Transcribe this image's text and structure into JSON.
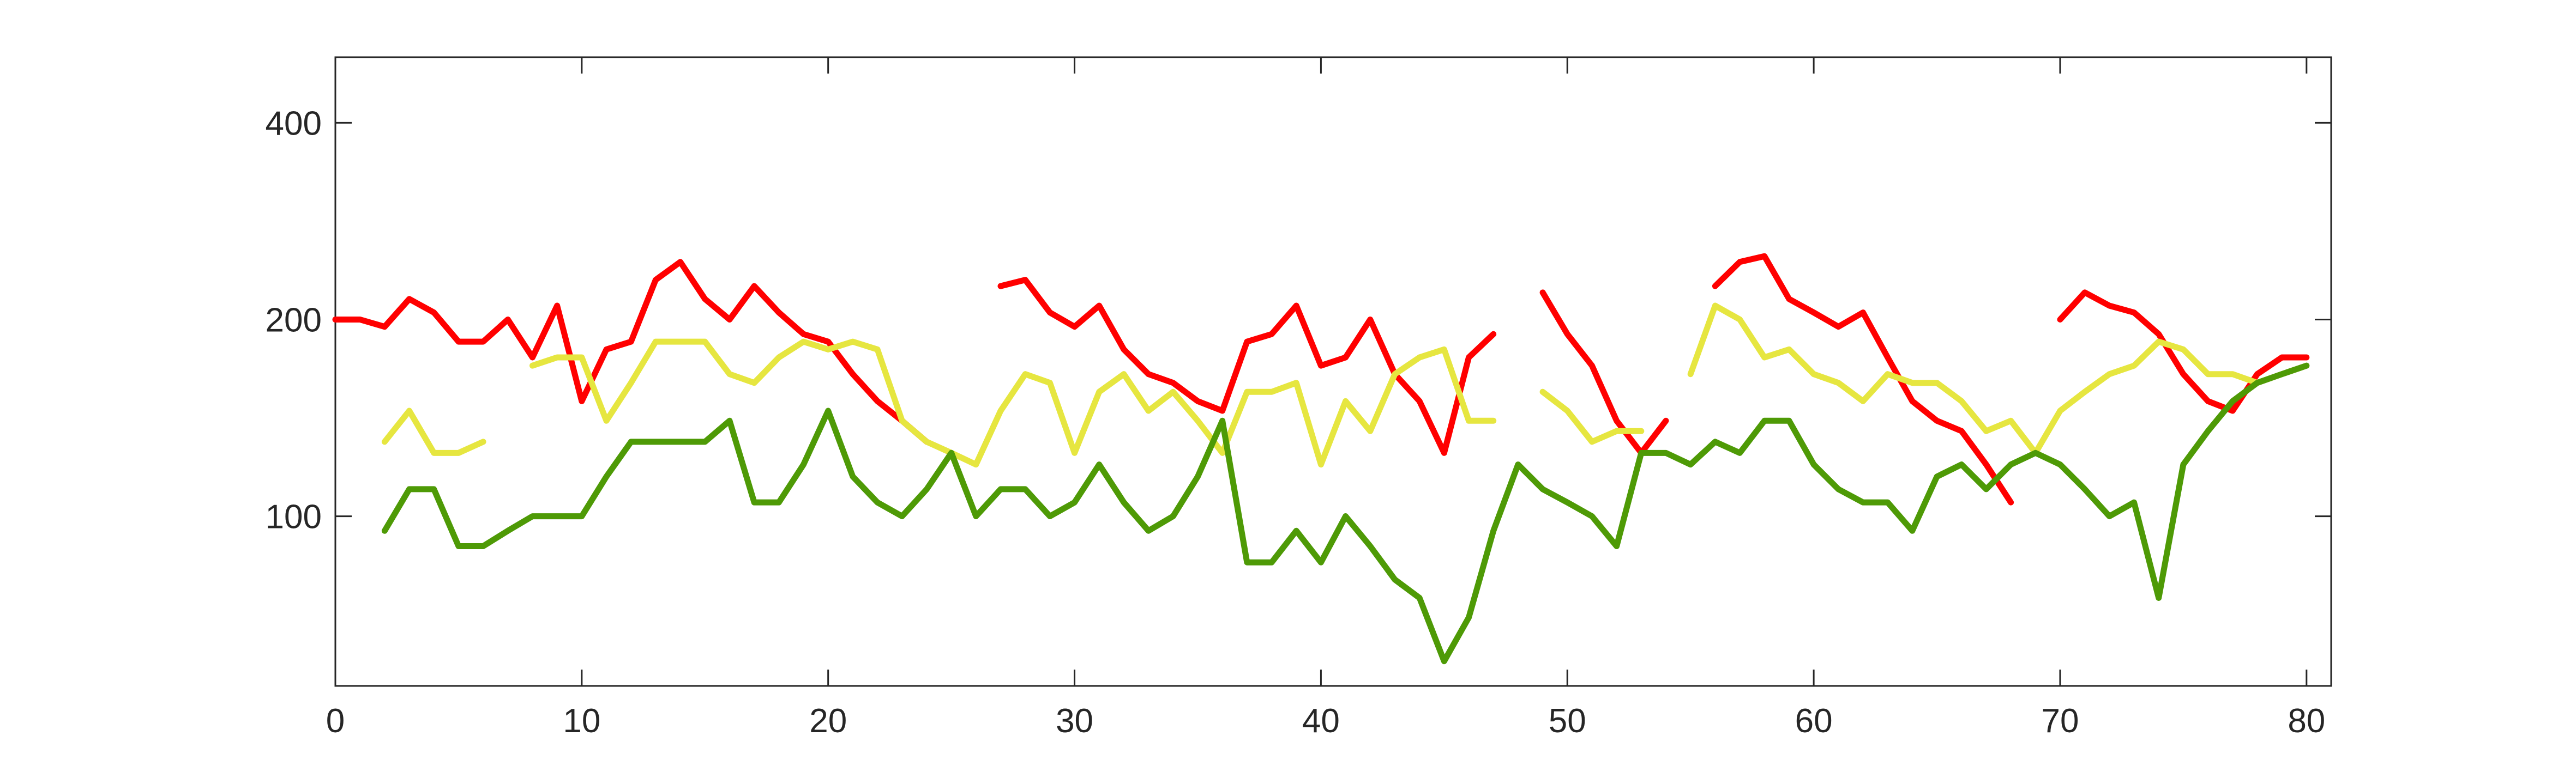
{
  "chart_data": {
    "type": "line",
    "yscale": "log",
    "x": [
      0,
      1,
      2,
      3,
      4,
      5,
      6,
      7,
      8,
      9,
      10,
      11,
      12,
      13,
      14,
      15,
      16,
      17,
      18,
      19,
      20,
      21,
      22,
      23,
      24,
      25,
      26,
      27,
      28,
      29,
      30,
      31,
      32,
      33,
      34,
      35,
      36,
      37,
      38,
      39,
      40,
      41,
      42,
      43,
      44,
      45,
      46,
      47,
      48,
      49,
      50,
      51,
      52,
      53,
      54,
      55,
      56,
      57,
      58,
      59,
      60,
      61,
      62,
      63,
      64,
      65,
      66,
      67,
      68,
      69,
      70,
      71,
      72,
      73,
      74,
      75,
      76,
      77,
      78,
      79,
      80
    ],
    "series": [
      {
        "color": "#ff0000",
        "values": [
          200,
          200,
          195,
          215,
          205,
          185,
          185,
          200,
          175,
          210,
          150,
          180,
          185,
          230,
          245,
          215,
          200,
          225,
          205,
          190,
          185,
          165,
          150,
          140,
          130,
          null,
          null,
          225,
          230,
          205,
          195,
          210,
          180,
          165,
          160,
          150,
          145,
          185,
          190,
          210,
          170,
          175,
          200,
          165,
          150,
          125,
          175,
          190,
          null,
          220,
          190,
          170,
          140,
          125,
          140,
          null,
          225,
          245,
          250,
          215,
          205,
          195,
          205,
          175,
          150,
          140,
          135,
          120,
          105,
          null,
          200,
          220,
          210,
          205,
          190,
          165,
          150,
          145,
          165,
          175,
          175
        ]
      },
      {
        "color": "#e6e640",
        "values": [
          null,
          null,
          130,
          145,
          125,
          125,
          130,
          null,
          170,
          175,
          175,
          140,
          160,
          185,
          185,
          185,
          165,
          160,
          175,
          185,
          180,
          185,
          180,
          140,
          130,
          125,
          120,
          145,
          165,
          160,
          125,
          155,
          165,
          145,
          155,
          140,
          125,
          155,
          155,
          160,
          120,
          150,
          135,
          165,
          175,
          180,
          140,
          140,
          null,
          155,
          145,
          130,
          135,
          135,
          null,
          165,
          210,
          200,
          175,
          180,
          165,
          160,
          150,
          165,
          160,
          160,
          150,
          135,
          140,
          125,
          145,
          155,
          165,
          170,
          185,
          180,
          165,
          165,
          160,
          165,
          170
        ]
      },
      {
        "color": "#4e9a06",
        "values": [
          null,
          null,
          95,
          110,
          110,
          90,
          90,
          95,
          100,
          100,
          100,
          115,
          130,
          130,
          130,
          130,
          140,
          105,
          105,
          120,
          145,
          115,
          105,
          100,
          110,
          125,
          100,
          110,
          110,
          100,
          105,
          120,
          105,
          95,
          100,
          115,
          140,
          85,
          85,
          95,
          85,
          100,
          90,
          80,
          75,
          60,
          70,
          95,
          120,
          110,
          105,
          100,
          90,
          125,
          125,
          120,
          130,
          125,
          140,
          140,
          120,
          110,
          105,
          105,
          95,
          115,
          120,
          110,
          120,
          125,
          120,
          110,
          100,
          105,
          75,
          120,
          135,
          150,
          160,
          165,
          170
        ]
      }
    ],
    "xlim": [
      0,
      81
    ],
    "xticks": [
      0,
      10,
      20,
      30,
      40,
      50,
      60,
      70,
      80
    ],
    "ylim": [
      55,
      504
    ],
    "yticks": [
      100,
      200,
      400
    ]
  }
}
